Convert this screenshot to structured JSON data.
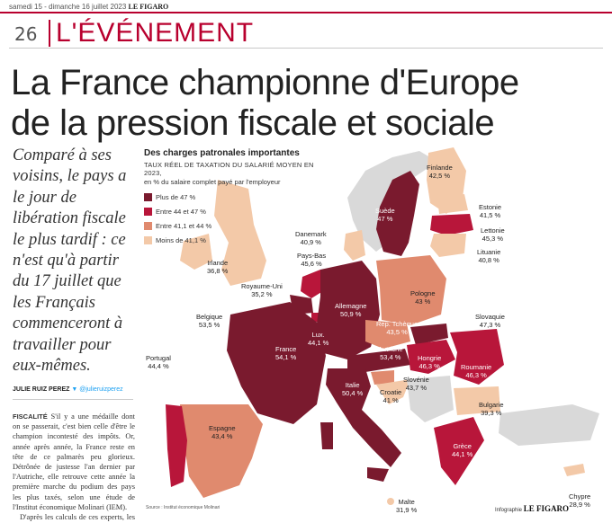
{
  "topbar": {
    "date": "samedi 15 - dimanche 16 juillet 2023",
    "brand": "LE FIGARO"
  },
  "section": {
    "page_number": "26",
    "name": "L'ÉVÉNEMENT"
  },
  "headline": {
    "line1": "La France championne d'Europe",
    "line2": "de la pression fiscale et sociale"
  },
  "lede": "Comparé à ses voisins, le pays a le jour de libération fiscale le plus tardif : ce n'est qu'à partir du 17 juillet que les Français commenceront à travailler pour eux-mêmes.",
  "byline": {
    "author": "JULIE RUIZ PEREZ",
    "twitter": "@julieruizperez"
  },
  "body": {
    "kicker": "FISCALITÉ",
    "p1": "S'il y a une médaille dont on se passerait, c'est bien celle d'être le champion incontesté des impôts. Or, année après année, la France reste en tête de ce palmarès peu glorieux. Détrônée de justesse l'an dernier par l'Autriche, elle retrouve cette année la première marche du podium des pays les plus taxés, selon une étude de l'Institut économique Molinari (IEM).",
    "p2": "D'après les calculs de ces experts, les Français ne commenceront à tra-"
  },
  "chart_data": {
    "type": "choropleth-map",
    "title": "Des charges patronales importantes",
    "subtitle": "TAUX RÉEL DE TAXATION DU SALARIÉ MOYEN EN 2023,",
    "unit_note": "en % du salaire complet payé par l'employeur",
    "legend": [
      {
        "label": "Plus de 47 %",
        "color": "#7a1a2e"
      },
      {
        "label": "Entre 44 et 47 %",
        "color": "#b8163a"
      },
      {
        "label": "Entre 41,1 et 44 %",
        "color": "#e08a6e"
      },
      {
        "label": "Moins de 41,1 %",
        "color": "#f3c9a8"
      }
    ],
    "countries": [
      {
        "name": "Finlande",
        "value": "42,5 %"
      },
      {
        "name": "Suède",
        "value": "47 %"
      },
      {
        "name": "Estonie",
        "value": "41,5 %"
      },
      {
        "name": "Lettonie",
        "value": "45,3 %"
      },
      {
        "name": "Danemark",
        "value": "40,9 %"
      },
      {
        "name": "Lituanie",
        "value": "40,8 %"
      },
      {
        "name": "Irlande",
        "value": "36,8 %"
      },
      {
        "name": "Pays-Bas",
        "value": "45,6 %"
      },
      {
        "name": "Royaume-Uni",
        "value": "35,2 %"
      },
      {
        "name": "Pologne",
        "value": "43 %"
      },
      {
        "name": "Allemagne",
        "value": "50,9 %"
      },
      {
        "name": "Belgique",
        "value": "53,5 %"
      },
      {
        "name": "Rep. Tchèque",
        "value": "43,5 %"
      },
      {
        "name": "Slovaquie",
        "value": "47,3 %"
      },
      {
        "name": "Lux.",
        "value": "44,1 %"
      },
      {
        "name": "France",
        "value": "54,1 %"
      },
      {
        "name": "Autriche",
        "value": "53,4 %"
      },
      {
        "name": "Hongrie",
        "value": "46,3 %"
      },
      {
        "name": "Roumanie",
        "value": "46,3 %"
      },
      {
        "name": "Portugal",
        "value": "44,4 %"
      },
      {
        "name": "Slovénie",
        "value": "43,7 %"
      },
      {
        "name": "Italie",
        "value": "50,4 %"
      },
      {
        "name": "Croatie",
        "value": "41 %"
      },
      {
        "name": "Bulgarie",
        "value": "39,3 %"
      },
      {
        "name": "Espagne",
        "value": "43,4 %"
      },
      {
        "name": "Grèce",
        "value": "44,1 %"
      },
      {
        "name": "Malte",
        "value": "31,9 %"
      },
      {
        "name": "Chypre",
        "value": "28,9 %"
      }
    ],
    "source": "Source : Institut économique Molinari",
    "credit_prefix": "Infographie",
    "credit_brand": "LE FIGARO"
  }
}
